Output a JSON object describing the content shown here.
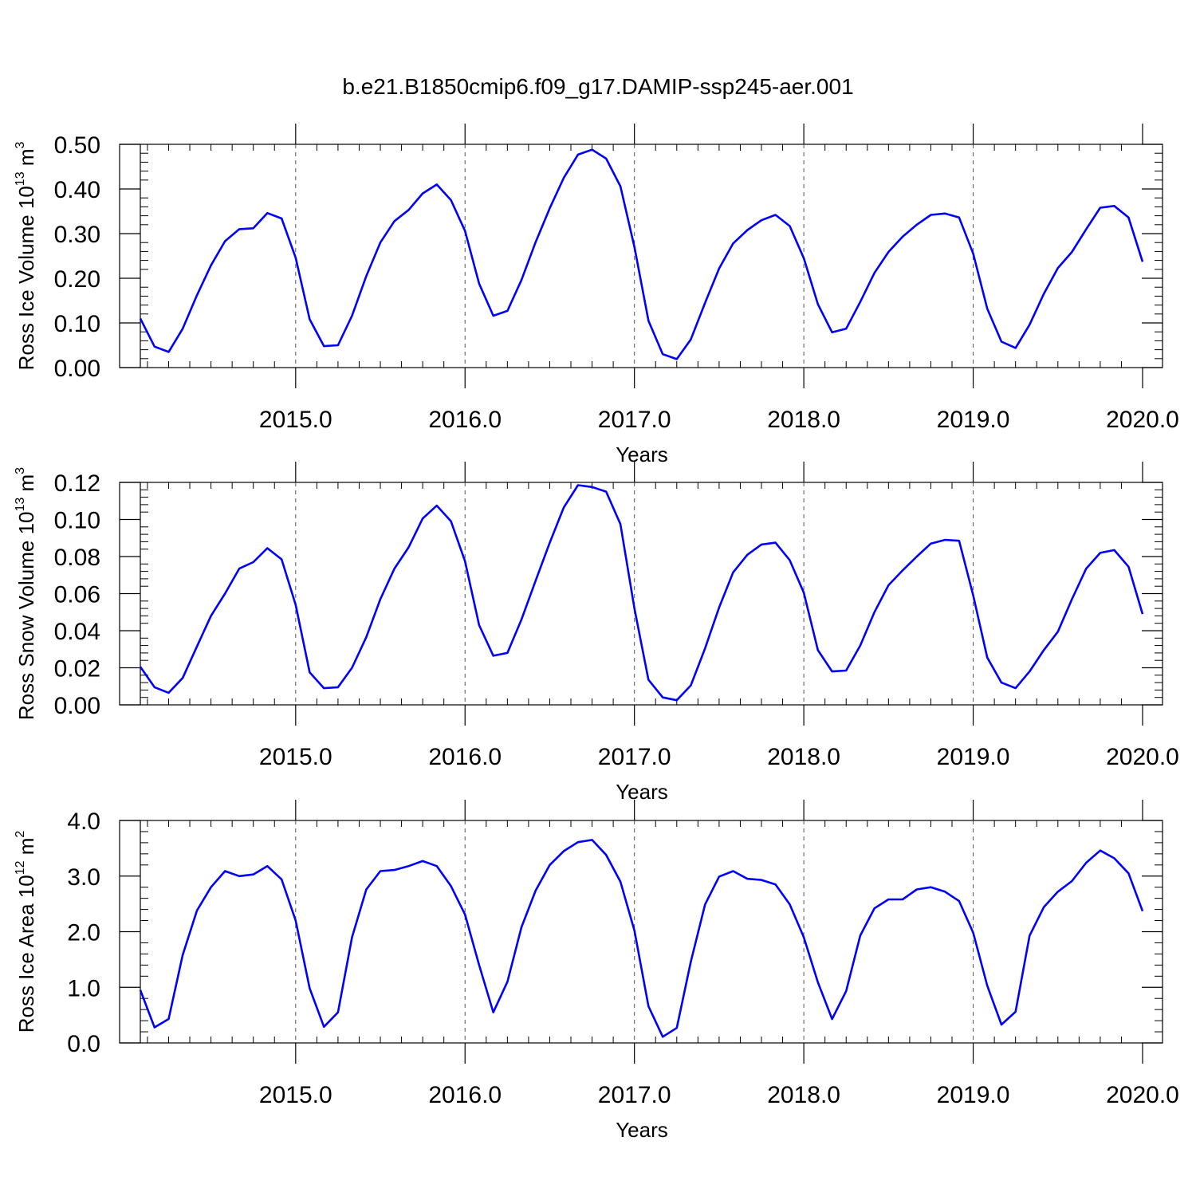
{
  "title": "b.e21.B1850cmip6.f09_g17.DAMIP-ssp245-aer.001",
  "chart_data": [
    {
      "type": "line",
      "ylabel": {
        "text": "Ross Ice Volume 10",
        "exponent": "13",
        "unit": "m",
        "unit_exponent": "3"
      },
      "xlabel": "Years",
      "xlim": [
        2014.083,
        2020.0
      ],
      "ylim": [
        0.0,
        0.5
      ],
      "yticks": [
        "0.00",
        "0.10",
        "0.20",
        "0.30",
        "0.40",
        "0.50"
      ],
      "ytick_values": [
        0.0,
        0.1,
        0.2,
        0.3,
        0.4,
        0.5
      ],
      "xticks": [
        "2015.0",
        "2016.0",
        "2017.0",
        "2018.0",
        "2019.0",
        "2020.0"
      ],
      "xtick_values": [
        2015,
        2016,
        2017,
        2018,
        2019,
        2020
      ],
      "grid": "dashed vertical at years",
      "line_color": "#0000ff",
      "x": [
        2014.083,
        2014.167,
        2014.25,
        2014.333,
        2014.417,
        2014.5,
        2014.583,
        2014.667,
        2014.75,
        2014.833,
        2014.917,
        2015.0,
        2015.083,
        2015.167,
        2015.25,
        2015.333,
        2015.417,
        2015.5,
        2015.583,
        2015.667,
        2015.75,
        2015.833,
        2015.917,
        2016.0,
        2016.083,
        2016.167,
        2016.25,
        2016.333,
        2016.417,
        2016.5,
        2016.583,
        2016.667,
        2016.75,
        2016.833,
        2016.917,
        2017.0,
        2017.083,
        2017.167,
        2017.25,
        2017.333,
        2017.417,
        2017.5,
        2017.583,
        2017.667,
        2017.75,
        2017.833,
        2017.917,
        2018.0,
        2018.083,
        2018.167,
        2018.25,
        2018.333,
        2018.417,
        2018.5,
        2018.583,
        2018.667,
        2018.75,
        2018.833,
        2018.917,
        2019.0,
        2019.083,
        2019.167,
        2019.25,
        2019.333,
        2019.417,
        2019.5,
        2019.583,
        2019.667,
        2019.75,
        2019.833,
        2019.917,
        2020.0
      ],
      "y": [
        0.11,
        0.047,
        0.035,
        0.087,
        0.162,
        0.229,
        0.283,
        0.31,
        0.312,
        0.346,
        0.334,
        0.246,
        0.108,
        0.048,
        0.05,
        0.116,
        0.205,
        0.28,
        0.328,
        0.353,
        0.39,
        0.41,
        0.375,
        0.306,
        0.188,
        0.116,
        0.127,
        0.196,
        0.281,
        0.357,
        0.425,
        0.477,
        0.488,
        0.468,
        0.406,
        0.27,
        0.105,
        0.03,
        0.019,
        0.063,
        0.145,
        0.222,
        0.278,
        0.308,
        0.33,
        0.342,
        0.317,
        0.245,
        0.142,
        0.079,
        0.087,
        0.147,
        0.212,
        0.259,
        0.293,
        0.32,
        0.342,
        0.345,
        0.336,
        0.255,
        0.132,
        0.058,
        0.044,
        0.096,
        0.165,
        0.223,
        0.259,
        0.31,
        0.358,
        0.362,
        0.336,
        0.237
      ]
    },
    {
      "type": "line",
      "ylabel": {
        "text": "Ross Snow Volume 10",
        "exponent": "13",
        "unit": "m",
        "unit_exponent": "3"
      },
      "xlabel": "Years",
      "xlim": [
        2014.083,
        2020.0
      ],
      "ylim": [
        0.0,
        0.12
      ],
      "yticks": [
        "0.00",
        "0.02",
        "0.04",
        "0.06",
        "0.08",
        "0.10",
        "0.12"
      ],
      "ytick_values": [
        0.0,
        0.02,
        0.04,
        0.06,
        0.08,
        0.1,
        0.12
      ],
      "xticks": [
        "2015.0",
        "2016.0",
        "2017.0",
        "2018.0",
        "2019.0",
        "2020.0"
      ],
      "xtick_values": [
        2015,
        2016,
        2017,
        2018,
        2019,
        2020
      ],
      "grid": "dashed vertical at years",
      "line_color": "#0000ff",
      "x": [
        2014.083,
        2014.167,
        2014.25,
        2014.333,
        2014.417,
        2014.5,
        2014.583,
        2014.667,
        2014.75,
        2014.833,
        2014.917,
        2015.0,
        2015.083,
        2015.167,
        2015.25,
        2015.333,
        2015.417,
        2015.5,
        2015.583,
        2015.667,
        2015.75,
        2015.833,
        2015.917,
        2016.0,
        2016.083,
        2016.167,
        2016.25,
        2016.333,
        2016.417,
        2016.5,
        2016.583,
        2016.667,
        2016.75,
        2016.833,
        2016.917,
        2017.0,
        2017.083,
        2017.167,
        2017.25,
        2017.333,
        2017.417,
        2017.5,
        2017.583,
        2017.667,
        2017.75,
        2017.833,
        2017.917,
        2018.0,
        2018.083,
        2018.167,
        2018.25,
        2018.333,
        2018.417,
        2018.5,
        2018.583,
        2018.667,
        2018.75,
        2018.833,
        2018.917,
        2019.0,
        2019.083,
        2019.167,
        2019.25,
        2019.333,
        2019.417,
        2019.5,
        2019.583,
        2019.667,
        2019.75,
        2019.833,
        2019.917,
        2020.0
      ],
      "y": [
        0.0205,
        0.0095,
        0.0065,
        0.0145,
        0.0315,
        0.048,
        0.06,
        0.0735,
        0.077,
        0.0845,
        0.0785,
        0.054,
        0.0175,
        0.009,
        0.0095,
        0.02,
        0.0365,
        0.057,
        0.0735,
        0.085,
        0.1005,
        0.1075,
        0.099,
        0.0775,
        0.043,
        0.0265,
        0.028,
        0.046,
        0.067,
        0.0875,
        0.1065,
        0.1185,
        0.1175,
        0.115,
        0.0975,
        0.052,
        0.0135,
        0.004,
        0.0025,
        0.0105,
        0.0305,
        0.0525,
        0.0715,
        0.081,
        0.0865,
        0.0875,
        0.078,
        0.0605,
        0.0295,
        0.018,
        0.0185,
        0.032,
        0.05,
        0.0645,
        0.0725,
        0.08,
        0.087,
        0.089,
        0.0885,
        0.059,
        0.0255,
        0.012,
        0.009,
        0.018,
        0.0295,
        0.0395,
        0.057,
        0.0735,
        0.082,
        0.0835,
        0.0745,
        0.049
      ]
    },
    {
      "type": "line",
      "ylabel": {
        "text": "Ross Ice Area 10",
        "exponent": "12",
        "unit": "m",
        "unit_exponent": "2"
      },
      "xlabel": "Years",
      "xlim": [
        2014.083,
        2020.0
      ],
      "ylim": [
        0.0,
        4.0
      ],
      "yticks": [
        "0.0",
        "1.0",
        "2.0",
        "3.0",
        "4.0"
      ],
      "ytick_values": [
        0.0,
        1.0,
        2.0,
        3.0,
        4.0
      ],
      "xticks": [
        "2015.0",
        "2016.0",
        "2017.0",
        "2018.0",
        "2019.0",
        "2020.0"
      ],
      "xtick_values": [
        2015,
        2016,
        2017,
        2018,
        2019,
        2020
      ],
      "grid": "dashed vertical at years",
      "line_color": "#0000ff",
      "x": [
        2014.083,
        2014.167,
        2014.25,
        2014.333,
        2014.417,
        2014.5,
        2014.583,
        2014.667,
        2014.75,
        2014.833,
        2014.917,
        2015.0,
        2015.083,
        2015.167,
        2015.25,
        2015.333,
        2015.417,
        2015.5,
        2015.583,
        2015.667,
        2015.75,
        2015.833,
        2015.917,
        2016.0,
        2016.083,
        2016.167,
        2016.25,
        2016.333,
        2016.417,
        2016.5,
        2016.583,
        2016.667,
        2016.75,
        2016.833,
        2016.917,
        2017.0,
        2017.083,
        2017.167,
        2017.25,
        2017.333,
        2017.417,
        2017.5,
        2017.583,
        2017.667,
        2017.75,
        2017.833,
        2017.917,
        2018.0,
        2018.083,
        2018.167,
        2018.25,
        2018.333,
        2018.417,
        2018.5,
        2018.583,
        2018.667,
        2018.75,
        2018.833,
        2018.917,
        2019.0,
        2019.083,
        2019.167,
        2019.25,
        2019.333,
        2019.417,
        2019.5,
        2019.583,
        2019.667,
        2019.75,
        2019.833,
        2019.917,
        2020.0
      ],
      "y": [
        0.95,
        0.28,
        0.43,
        1.58,
        2.38,
        2.8,
        3.09,
        3.0,
        3.03,
        3.18,
        2.94,
        2.2,
        0.98,
        0.29,
        0.55,
        1.9,
        2.76,
        3.09,
        3.11,
        3.18,
        3.27,
        3.18,
        2.82,
        2.31,
        1.4,
        0.55,
        1.1,
        2.08,
        2.74,
        3.2,
        3.45,
        3.61,
        3.65,
        3.38,
        2.9,
        2.02,
        0.66,
        0.11,
        0.27,
        1.46,
        2.49,
        2.99,
        3.09,
        2.95,
        2.93,
        2.85,
        2.49,
        1.9,
        1.09,
        0.43,
        0.93,
        1.93,
        2.42,
        2.58,
        2.58,
        2.76,
        2.8,
        2.72,
        2.55,
        1.98,
        1.03,
        0.33,
        0.56,
        1.93,
        2.44,
        2.72,
        2.91,
        3.24,
        3.46,
        3.32,
        3.05,
        2.37
      ]
    }
  ]
}
